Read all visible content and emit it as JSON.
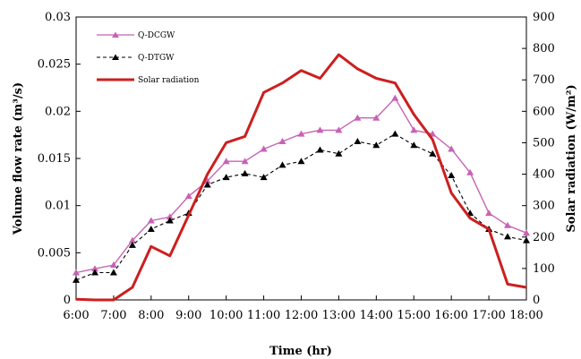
{
  "chart_data": {
    "type": "line",
    "xlabel": "Time (hr)",
    "ylabel_left": "Volume flow rate (m³/s)",
    "ylabel_right": "Solar radiation (W/m²)",
    "x_ticks": [
      "6:00",
      "7:00",
      "8:00",
      "9:00",
      "10:00",
      "11:00",
      "12:00",
      "13:00",
      "14:00",
      "15:00",
      "16:00",
      "17:00",
      "18:00"
    ],
    "xlim_hours": [
      6,
      18
    ],
    "ylim_left": [
      0,
      0.03
    ],
    "ylim_right": [
      0,
      900
    ],
    "y_ticks_left": [
      "0",
      "0.005",
      "0.01",
      "0.015",
      "0.02",
      "0.025",
      "0.03"
    ],
    "y_ticks_right": [
      "0",
      "100",
      "200",
      "300",
      "400",
      "500",
      "600",
      "700",
      "800",
      "900"
    ],
    "grid": false,
    "legend_position": "top-left",
    "series": [
      {
        "name": "Q-DCGW",
        "axis": "left",
        "color": "#c862b4",
        "line_style": "solid",
        "marker": "triangle",
        "x": [
          "6:00",
          "6:30",
          "7:00",
          "7:30",
          "8:00",
          "8:30",
          "9:00",
          "9:30",
          "10:00",
          "10:30",
          "11:00",
          "11:30",
          "12:00",
          "12:30",
          "13:00",
          "13:30",
          "14:00",
          "14:30",
          "15:00",
          "15:30",
          "16:00",
          "16:30",
          "17:00",
          "17:30",
          "18:00"
        ],
        "values": [
          0.0029,
          0.0033,
          0.0037,
          0.0063,
          0.0084,
          0.0088,
          0.011,
          0.0126,
          0.0147,
          0.0147,
          0.016,
          0.0168,
          0.0176,
          0.018,
          0.018,
          0.0193,
          0.0193,
          0.0214,
          0.018,
          0.0176,
          0.016,
          0.0135,
          0.0092,
          0.0079,
          0.0071
        ]
      },
      {
        "name": "Q-DTGW",
        "axis": "left",
        "color": "#000000",
        "line_style": "dashed",
        "marker": "triangle",
        "x": [
          "6:00",
          "6:30",
          "7:00",
          "7:30",
          "8:00",
          "8:30",
          "9:00",
          "9:30",
          "10:00",
          "10:30",
          "11:00",
          "11:30",
          "12:00",
          "12:30",
          "13:00",
          "13:30",
          "14:00",
          "14:30",
          "15:00",
          "15:30",
          "16:00",
          "16:30",
          "17:00",
          "17:30",
          "18:00"
        ],
        "values": [
          0.0021,
          0.0029,
          0.0029,
          0.0058,
          0.0075,
          0.0084,
          0.0092,
          0.0122,
          0.013,
          0.0134,
          0.013,
          0.0143,
          0.0147,
          0.0159,
          0.0155,
          0.0168,
          0.0164,
          0.0176,
          0.0164,
          0.0155,
          0.0132,
          0.0092,
          0.0075,
          0.0067,
          0.0063
        ]
      },
      {
        "name": "Solar radiation",
        "axis": "right",
        "color": "#cc1f1f",
        "line_style": "solid",
        "marker": "none",
        "x": [
          "6:00",
          "6:30",
          "7:00",
          "7:30",
          "8:00",
          "8:30",
          "9:00",
          "9:30",
          "10:00",
          "10:30",
          "11:00",
          "11:30",
          "12:00",
          "12:30",
          "13:00",
          "13:30",
          "14:00",
          "14:30",
          "15:00",
          "15:30",
          "16:00",
          "16:30",
          "17:00",
          "17:30",
          "18:00"
        ],
        "values": [
          2,
          0,
          0,
          40,
          170,
          140,
          270,
          400,
          500,
          520,
          660,
          690,
          730,
          705,
          780,
          735,
          705,
          690,
          590,
          510,
          340,
          260,
          225,
          50,
          40
        ]
      }
    ]
  }
}
